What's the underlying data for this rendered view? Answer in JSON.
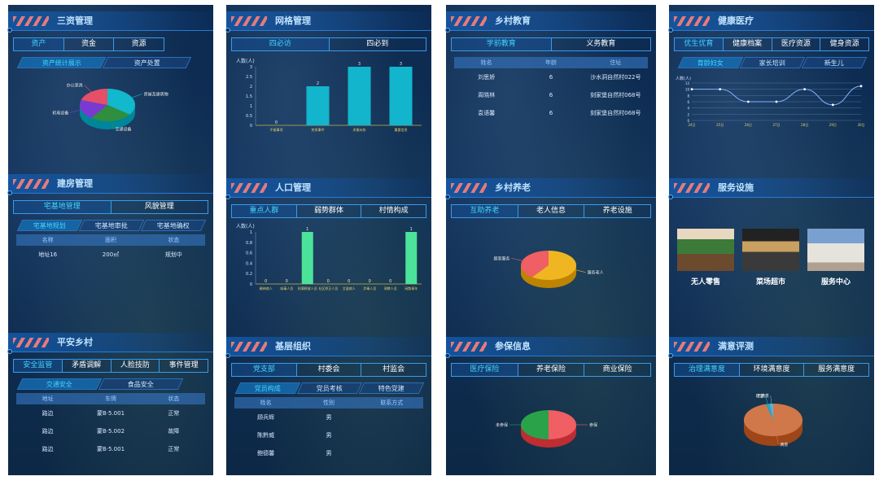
{
  "columns": [
    {
      "panels": [
        {
          "title": "三资管理",
          "tabs": [
            "资产",
            "资金",
            "资源"
          ],
          "active_tab": 0,
          "subtabs": [
            "资产统计展示",
            "资产处置"
          ],
          "active_subtab": 0,
          "pie_labels": [
            "办公家具",
            "房屋及建筑物",
            "交通设备",
            "机电设备"
          ]
        },
        {
          "title": "建房管理",
          "tabs": [
            "宅基地管理",
            "风貌管理"
          ],
          "active_tab": 0,
          "subtabs": [
            "宅基地规划",
            "宅基地审批",
            "宅基地确权"
          ],
          "active_subtab": 0,
          "table": {
            "headers": [
              "名称",
              "面积",
              "状态"
            ],
            "rows": [
              [
                "地址16",
                "200㎡",
                "规划中"
              ]
            ]
          }
        },
        {
          "title": "平安乡村",
          "tabs": [
            "安全监管",
            "矛盾调解",
            "人脸技防",
            "事件管理"
          ],
          "active_tab": 0,
          "subtabs": [
            "交通安全",
            "食品安全"
          ],
          "active_subtab": 0,
          "table": {
            "headers": [
              "地址",
              "车牌",
              "状态"
            ],
            "rows": [
              [
                "路边",
                "蒙B·5.001",
                "正常"
              ],
              [
                "路边",
                "蒙B·5.002",
                "故障"
              ],
              [
                "路边",
                "蒙B·5.001",
                "正常"
              ]
            ]
          }
        }
      ]
    },
    {
      "panels": [
        {
          "title": "网格管理",
          "tabs": [
            "四必访",
            "四必到"
          ],
          "active_tab": 0
        },
        {
          "title": "人口管理",
          "tabs": [
            "重点人群",
            "弱势群体",
            "村情构成"
          ],
          "active_tab": 0
        },
        {
          "title": "基层组织",
          "tabs": [
            "党支部",
            "村委会",
            "村监会"
          ],
          "active_tab": 0,
          "subtabs": [
            "党员构成",
            "党员考核",
            "特色党建"
          ],
          "active_subtab": 0,
          "table": {
            "headers": [
              "姓名",
              "性别",
              "联系方式"
            ],
            "rows": [
              [
                "顾兵辉",
                "男",
                ""
              ],
              [
                "陈黔威",
                "男",
                ""
              ],
              [
                "鲍德馨",
                "男",
                ""
              ]
            ]
          }
        }
      ]
    },
    {
      "panels": [
        {
          "title": "乡村教育",
          "tabs": [
            "学前教育",
            "义务教育"
          ],
          "active_tab": 0,
          "table": {
            "headers": [
              "姓名",
              "年龄",
              "住址"
            ],
            "rows": [
              [
                "刘思娇",
                "6",
                "沙水洞自然村022号"
              ],
              [
                "周晓林",
                "6",
                "刻家堡自然村068号"
              ],
              [
                "袁语馨",
                "6",
                "刻家堡自然村068号"
              ]
            ]
          }
        },
        {
          "title": "乡村养老",
          "tabs": [
            "互助养老",
            "老人信息",
            "养老设施"
          ],
          "active_tab": 0,
          "pie_labels": [
            "居家服务",
            "服务老人"
          ]
        },
        {
          "title": "参保信息",
          "tabs": [
            "医疗保险",
            "养老保险",
            "商业保险"
          ],
          "active_tab": 0,
          "pie_labels": [
            "未参保",
            "参保"
          ]
        }
      ]
    },
    {
      "panels": [
        {
          "title": "健康医疗",
          "tabs": [
            "优生优育",
            "健康档案",
            "医疗资源",
            "健身资源"
          ],
          "active_tab": 0,
          "subtabs": [
            "育龄妇女",
            "家长培训",
            "新生儿"
          ],
          "active_subtab": 0
        },
        {
          "title": "服务设施",
          "facilities": [
            "无人零售",
            "菜场超市",
            "服务中心"
          ]
        },
        {
          "title": "满意评测",
          "tabs": [
            "治理满意度",
            "环境满意度",
            "服务满意度"
          ],
          "active_tab": 0,
          "pie_labels": [
            "较差",
            "不满意",
            "满意"
          ]
        }
      ]
    }
  ],
  "chart_data": [
    {
      "type": "bar",
      "title": "",
      "ylabel": "人数(人)",
      "categories": [
        "不接事项",
        "突发事件",
        "矛盾纠纷",
        "重要信息"
      ],
      "values": [
        0,
        2,
        3,
        3
      ],
      "ylim": [
        0,
        3
      ],
      "yticks": [
        "0",
        "0.5",
        "1",
        "1.5",
        "2",
        "2.5",
        "3"
      ],
      "color": "#12b5cc"
    },
    {
      "type": "bar",
      "title": "",
      "ylabel": "人数(人)",
      "categories": [
        "精神病人",
        "吸毒人员",
        "刑满释放人员",
        "社区矫正人员",
        "艾滋病人",
        "涉毒人员",
        "邪教人员",
        "闲散青年"
      ],
      "values": [
        0,
        0,
        1,
        0,
        0,
        0,
        0,
        1
      ],
      "ylim": [
        0,
        1
      ],
      "yticks": [
        "0",
        "0.2",
        "0.4",
        "0.6",
        "0.8",
        "1"
      ],
      "color": "#4be39a"
    },
    {
      "type": "line",
      "title": "",
      "ylabel": "人数(人)",
      "categories": [
        "24日",
        "25日",
        "26日",
        "27日",
        "28日",
        "29日",
        "30日"
      ],
      "values": [
        10,
        10,
        6,
        6,
        10,
        5,
        11
      ],
      "ylim": [
        0,
        12
      ],
      "yticks": [
        "0",
        "2",
        "4",
        "6",
        "8",
        "10",
        "12"
      ],
      "color": "#7fb3ff"
    },
    {
      "type": "pie",
      "categories": [
        "房屋及建筑物",
        "交通设备",
        "机电设备",
        "办公家具"
      ],
      "values": [
        35,
        25,
        20,
        20
      ]
    },
    {
      "type": "pie",
      "categories": [
        "服务老人",
        "居家服务"
      ],
      "values": [
        60,
        40
      ]
    },
    {
      "type": "pie",
      "categories": [
        "参保",
        "未参保"
      ],
      "values": [
        50,
        50
      ]
    },
    {
      "type": "pie",
      "categories": [
        "满意",
        "较差",
        "不满意"
      ],
      "values": [
        96,
        2,
        2
      ]
    }
  ]
}
